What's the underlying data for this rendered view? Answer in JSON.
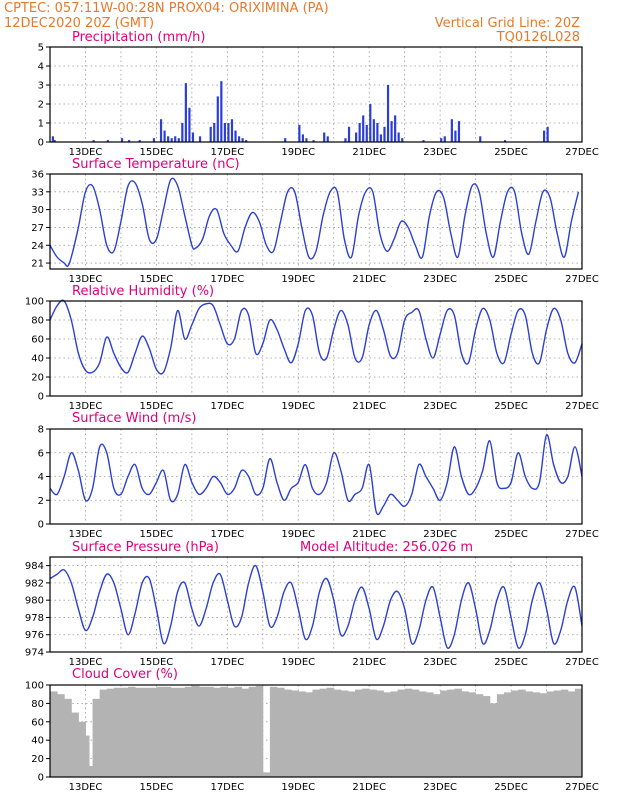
{
  "header": {
    "line1": "CPTEC:   057:11W-00:28N   PROX04: ORIXIMINA (PA)",
    "line2_left": "12DEC2020 20Z (GMT)",
    "line2_right": "Vertical Grid Line: 20Z",
    "line3_right": "TQ0126L028"
  },
  "colors": {
    "header": "#e8792b",
    "panel_title": "#e0007a",
    "series": "#2b3fd6",
    "cloud": "#b3b3b3",
    "grid": "#9a9a9a"
  },
  "x_tick_labels": [
    "13DEC",
    "15DEC",
    "17DEC",
    "19DEC",
    "21DEC",
    "23DEC",
    "25DEC",
    "27DEC"
  ],
  "chart_data": [
    {
      "type": "bar",
      "title": "Precipitation (mm/h)",
      "ylim": [
        0,
        5
      ],
      "yticks": [
        0,
        1,
        2,
        3,
        4,
        5
      ],
      "x": [
        0.05,
        0.1,
        1.2,
        1.6,
        2.0,
        2.2,
        2.5,
        2.9,
        3.1,
        3.2,
        3.3,
        3.4,
        3.5,
        3.6,
        3.7,
        3.8,
        3.9,
        4.0,
        4.2,
        4.5,
        4.6,
        4.7,
        4.8,
        4.9,
        5.0,
        5.1,
        5.2,
        5.3,
        5.4,
        5.5,
        6.6,
        7.0,
        7.1,
        7.2,
        7.4,
        7.7,
        7.8,
        8.3,
        8.4,
        8.6,
        8.7,
        8.8,
        8.9,
        9.0,
        9.1,
        9.2,
        9.3,
        9.4,
        9.5,
        9.6,
        9.7,
        9.8,
        9.9,
        10.5,
        11.0,
        11.1,
        11.3,
        11.4,
        11.5,
        12.1,
        12.8,
        13.9,
        14.0
      ],
      "values": [
        0.3,
        0.1,
        0.1,
        0.1,
        0.2,
        0.1,
        0.1,
        0.2,
        1.2,
        0.6,
        0.3,
        0.2,
        0.3,
        0.2,
        1.0,
        3.1,
        1.8,
        0.5,
        0.3,
        0.8,
        1.0,
        2.4,
        3.2,
        1.0,
        1.0,
        1.2,
        0.6,
        0.3,
        0.2,
        0.1,
        0.2,
        0.9,
        0.4,
        0.2,
        0.1,
        0.5,
        0.3,
        0.2,
        0.8,
        0.5,
        1.0,
        1.4,
        0.9,
        2.0,
        1.2,
        1.0,
        0.4,
        0.8,
        3.0,
        1.1,
        1.4,
        0.5,
        0.2,
        0.1,
        0.2,
        0.3,
        1.2,
        0.6,
        1.1,
        0.3,
        0.1,
        0.6,
        0.8
      ]
    },
    {
      "type": "line",
      "title": "Surface Temperature (nC)",
      "ylim": [
        20,
        36
      ],
      "yticks": [
        21,
        24,
        27,
        30,
        33,
        36
      ],
      "x": [
        0,
        0.2,
        0.4,
        0.5,
        0.6,
        0.8,
        1.0,
        1.2,
        1.4,
        1.6,
        1.8,
        2.0,
        2.2,
        2.4,
        2.6,
        2.8,
        3.0,
        3.2,
        3.4,
        3.6,
        3.8,
        4.0,
        4.1,
        4.3,
        4.5,
        4.7,
        4.9,
        5.1,
        5.3,
        5.5,
        5.7,
        5.9,
        6.1,
        6.3,
        6.5,
        6.7,
        6.9,
        7.1,
        7.3,
        7.5,
        7.7,
        7.9,
        8.1,
        8.3,
        8.5,
        8.7,
        8.9,
        9.1,
        9.3,
        9.5,
        9.7,
        9.9,
        10.1,
        10.3,
        10.5,
        10.7,
        10.9,
        11.1,
        11.3,
        11.5,
        11.7,
        11.9,
        12.1,
        12.3,
        12.5,
        12.7,
        12.9,
        13.1,
        13.3,
        13.5,
        13.7,
        13.9,
        14.1,
        14.3,
        14.5,
        14.7,
        14.9
      ],
      "values": [
        24,
        22,
        21,
        20.5,
        22,
        27,
        33,
        34,
        30,
        24,
        23,
        28,
        34,
        34.5,
        31,
        25,
        25,
        30,
        35,
        34,
        29,
        24,
        23.5,
        25,
        29,
        30,
        26,
        24,
        23,
        27,
        29.5,
        28,
        24,
        23,
        28,
        33,
        33,
        27,
        22,
        23,
        29,
        33,
        33,
        25,
        22,
        29,
        33,
        33,
        26,
        23,
        25,
        28,
        27,
        24,
        22,
        29,
        33,
        32,
        26,
        22,
        29,
        34,
        33,
        26,
        22,
        28,
        33,
        33,
        26,
        22.5,
        28,
        33,
        32,
        26,
        22,
        28,
        33
      ]
    },
    {
      "type": "line",
      "title": "Relative Humidity (%)",
      "ylim": [
        0,
        100
      ],
      "yticks": [
        0,
        20,
        40,
        60,
        80,
        100
      ],
      "x": [
        0,
        0.2,
        0.4,
        0.6,
        0.8,
        1.0,
        1.2,
        1.4,
        1.6,
        1.8,
        2.0,
        2.2,
        2.4,
        2.6,
        2.8,
        3.0,
        3.2,
        3.4,
        3.6,
        3.8,
        4.0,
        4.2,
        4.4,
        4.6,
        4.8,
        5.0,
        5.2,
        5.4,
        5.6,
        5.8,
        6.0,
        6.2,
        6.4,
        6.6,
        6.8,
        7.0,
        7.2,
        7.4,
        7.6,
        7.8,
        8.0,
        8.2,
        8.4,
        8.6,
        8.8,
        9.0,
        9.2,
        9.4,
        9.6,
        9.8,
        10.0,
        10.2,
        10.4,
        10.6,
        10.8,
        11.0,
        11.2,
        11.4,
        11.6,
        11.8,
        12.0,
        12.2,
        12.4,
        12.6,
        12.8,
        13.0,
        13.2,
        13.4,
        13.6,
        13.8,
        14.0,
        14.2,
        14.4,
        14.6,
        14.8,
        15.0
      ],
      "values": [
        80,
        95,
        100,
        80,
        45,
        27,
        25,
        35,
        62,
        45,
        30,
        25,
        45,
        63,
        50,
        28,
        25,
        50,
        90,
        60,
        75,
        92,
        97,
        95,
        75,
        55,
        60,
        90,
        85,
        45,
        55,
        80,
        70,
        50,
        35,
        55,
        90,
        85,
        45,
        40,
        70,
        90,
        75,
        40,
        40,
        75,
        90,
        70,
        42,
        45,
        80,
        88,
        90,
        60,
        40,
        65,
        90,
        85,
        45,
        35,
        70,
        92,
        80,
        45,
        35,
        65,
        90,
        85,
        45,
        35,
        70,
        92,
        80,
        45,
        35,
        55
      ]
    },
    {
      "type": "line",
      "title": "Surface Wind (m/s)",
      "ylim": [
        0,
        8
      ],
      "yticks": [
        0,
        2,
        4,
        6,
        8
      ],
      "x": [
        0,
        0.2,
        0.4,
        0.6,
        0.8,
        1.0,
        1.2,
        1.4,
        1.6,
        1.8,
        2.0,
        2.2,
        2.4,
        2.6,
        2.8,
        3.0,
        3.2,
        3.4,
        3.6,
        3.8,
        4.0,
        4.2,
        4.4,
        4.6,
        4.8,
        5.0,
        5.2,
        5.4,
        5.6,
        5.8,
        6.0,
        6.2,
        6.4,
        6.6,
        6.8,
        7.0,
        7.2,
        7.4,
        7.6,
        7.8,
        8.0,
        8.2,
        8.4,
        8.6,
        8.8,
        9.0,
        9.2,
        9.4,
        9.6,
        9.8,
        10.0,
        10.2,
        10.4,
        10.6,
        10.8,
        11.0,
        11.2,
        11.4,
        11.6,
        11.8,
        12.0,
        12.2,
        12.4,
        12.6,
        12.8,
        13.0,
        13.2,
        13.4,
        13.6,
        13.8,
        14.0,
        14.2,
        14.4,
        14.6,
        14.8,
        15.0
      ],
      "values": [
        3.0,
        2.5,
        4.0,
        6.0,
        4.5,
        2.0,
        3.0,
        6.5,
        6.0,
        3.0,
        2.5,
        4.0,
        5.0,
        3.0,
        2.5,
        3.5,
        4.5,
        2.0,
        2.5,
        5.0,
        3.5,
        2.5,
        3.0,
        4.0,
        3.5,
        2.5,
        3.0,
        4.5,
        4.0,
        2.5,
        3.0,
        5.5,
        3.5,
        2.0,
        3.0,
        3.5,
        5.0,
        3.0,
        2.5,
        3.5,
        6.0,
        4.5,
        2.0,
        2.5,
        3.0,
        5.0,
        1.0,
        1.5,
        2.5,
        2.0,
        1.5,
        2.5,
        5.0,
        4.0,
        3.0,
        2.0,
        3.5,
        6.5,
        4.0,
        2.5,
        3.0,
        4.5,
        7.0,
        3.5,
        3.0,
        3.5,
        6.0,
        4.0,
        3.0,
        3.5,
        7.5,
        5.0,
        3.5,
        4.0,
        6.5,
        4.0
      ]
    },
    {
      "type": "line",
      "title": "Surface Pressure (hPa)",
      "annotation": "Model Altitude: 256.026 m",
      "ylim": [
        974,
        985
      ],
      "yticks": [
        974,
        976,
        978,
        980,
        982,
        984
      ],
      "x": [
        0,
        0.2,
        0.4,
        0.6,
        0.8,
        1.0,
        1.2,
        1.4,
        1.6,
        1.8,
        2.0,
        2.2,
        2.4,
        2.6,
        2.8,
        3.0,
        3.2,
        3.4,
        3.6,
        3.8,
        4.0,
        4.2,
        4.4,
        4.6,
        4.8,
        5.0,
        5.2,
        5.4,
        5.6,
        5.8,
        6.0,
        6.2,
        6.4,
        6.6,
        6.8,
        7.0,
        7.2,
        7.4,
        7.6,
        7.8,
        8.0,
        8.2,
        8.4,
        8.6,
        8.8,
        9.0,
        9.2,
        9.4,
        9.6,
        9.8,
        10.0,
        10.2,
        10.4,
        10.6,
        10.8,
        11.0,
        11.2,
        11.4,
        11.6,
        11.8,
        12.0,
        12.2,
        12.4,
        12.6,
        12.8,
        13.0,
        13.2,
        13.4,
        13.6,
        13.8,
        14.0,
        14.2,
        14.4,
        14.6,
        14.8,
        15.0
      ],
      "values": [
        982.5,
        983,
        983.5,
        982,
        979,
        976.5,
        978,
        981,
        983,
        982,
        979,
        976,
        978.5,
        982,
        982.5,
        979,
        975,
        977,
        981,
        982,
        979,
        977,
        979,
        982,
        983,
        980,
        977,
        978,
        982,
        984,
        981,
        977,
        978,
        981,
        982,
        979,
        975.5,
        977,
        981,
        982.5,
        980,
        976,
        977,
        980,
        981.5,
        979,
        975.5,
        977,
        980,
        981,
        979,
        975,
        976.5,
        980,
        981.5,
        978,
        974.5,
        976,
        980,
        982,
        979,
        975,
        976.5,
        980,
        981.5,
        978,
        974.5,
        976,
        980,
        982,
        979,
        975,
        976.5,
        980,
        981.5,
        977
      ]
    },
    {
      "type": "bar",
      "title": "Cloud Cover (%)",
      "ylim": [
        0,
        100
      ],
      "yticks": [
        0,
        20,
        40,
        60,
        80,
        100
      ],
      "x": [
        0,
        0.2,
        0.4,
        0.6,
        0.8,
        0.9,
        1.0,
        1.2,
        1.4,
        1.6,
        1.8,
        2.0,
        2.2,
        2.4,
        2.6,
        2.8,
        3.0,
        3.2,
        3.4,
        3.6,
        3.8,
        4.0,
        4.2,
        4.4,
        4.6,
        4.8,
        5.0,
        5.2,
        5.4,
        5.6,
        5.8,
        6.0,
        6.2,
        6.4,
        6.6,
        6.8,
        7.0,
        7.2,
        7.4,
        7.6,
        7.8,
        8.0,
        8.2,
        8.4,
        8.6,
        8.8,
        9.0,
        9.2,
        9.4,
        9.6,
        9.8,
        10.0,
        10.2,
        10.4,
        10.6,
        10.8,
        11.0,
        11.2,
        11.4,
        11.6,
        11.8,
        12.0,
        12.2,
        12.4,
        12.6,
        12.8,
        13.0,
        13.2,
        13.4,
        13.6,
        13.8,
        14.0,
        14.2,
        14.4,
        14.6,
        14.8
      ],
      "values": [
        93,
        90,
        85,
        70,
        60,
        45,
        12,
        85,
        95,
        96,
        97,
        97,
        98,
        97,
        97,
        97,
        98,
        98,
        97,
        97,
        98,
        99,
        98,
        98,
        97,
        98,
        97,
        98,
        96,
        98,
        99,
        5,
        98,
        97,
        95,
        94,
        93,
        92,
        95,
        96,
        97,
        95,
        94,
        93,
        95,
        96,
        95,
        94,
        92,
        93,
        95,
        96,
        95,
        93,
        92,
        90,
        94,
        95,
        96,
        93,
        92,
        90,
        88,
        80,
        90,
        92,
        94,
        95,
        93,
        92,
        91,
        93,
        94,
        95,
        93,
        96
      ]
    }
  ]
}
